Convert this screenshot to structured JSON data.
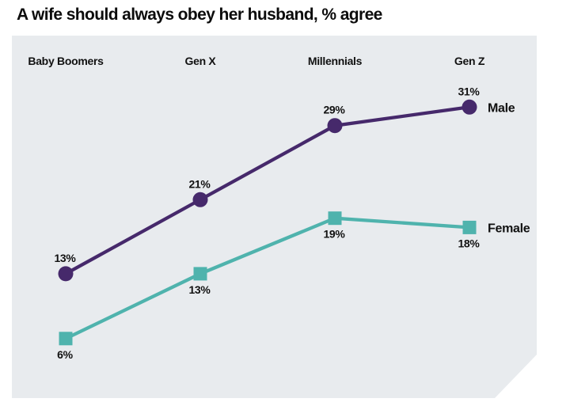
{
  "title": "A wife should always obey her husband, % agree",
  "panel": {
    "background": "#e8ebee"
  },
  "chart_data": {
    "type": "line",
    "title": "A wife should always obey her husband, % agree",
    "categories": [
      "Baby Boomers",
      "Gen X",
      "Millennials",
      "Gen Z"
    ],
    "series": [
      {
        "name": "Male",
        "values": [
          13,
          21,
          29,
          31
        ],
        "color": "#46296b",
        "marker": "circle",
        "value_label_position": "above"
      },
      {
        "name": "Female",
        "values": [
          6,
          13,
          19,
          18
        ],
        "color": "#4fb3ad",
        "marker": "square",
        "value_label_position": "below"
      }
    ],
    "value_suffix": "%",
    "ylim": [
      0,
      39
    ],
    "grid": false,
    "axes_visible": false,
    "category_label_position": "top",
    "legend_position": "right-of-last-point",
    "plot_background": "#e8ebee",
    "text_color": "#111111"
  }
}
